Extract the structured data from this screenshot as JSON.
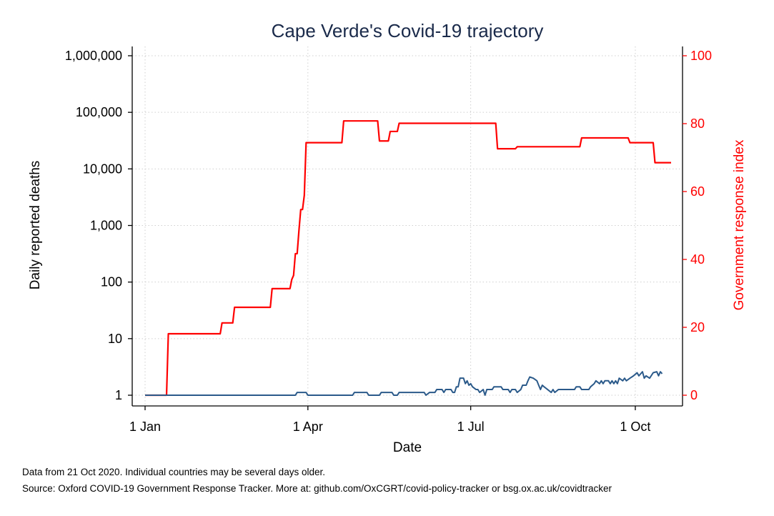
{
  "chart_data": {
    "type": "line",
    "title": "Cape Verde's Covid-19 trajectory",
    "xlabel": "Date",
    "ylabel_left": "Daily reported deaths",
    "ylabel_right": "Government response index",
    "x_ticks": [
      "1 Jan",
      "1 Apr",
      "1 Jul",
      "1 Oct"
    ],
    "x_tick_dates": [
      "2020-01-01",
      "2020-04-01",
      "2020-07-01",
      "2020-10-01"
    ],
    "xlim": [
      "2020-01-01",
      "2020-10-21"
    ],
    "left_axis": {
      "scale": "log",
      "ylim": [
        1,
        1000000
      ],
      "ticks": [
        1,
        10,
        100,
        1000,
        10000,
        100000,
        1000000
      ],
      "tick_labels": [
        "1",
        "10",
        "100",
        "1,000",
        "10,000",
        "100,000",
        "1,000,000"
      ]
    },
    "right_axis": {
      "scale": "linear",
      "ylim": [
        0,
        100
      ],
      "ticks": [
        0,
        20,
        40,
        60,
        80,
        100
      ],
      "tick_labels": [
        "0",
        "20",
        "40",
        "60",
        "80",
        "100"
      ],
      "color": "#ff0000"
    },
    "grid": true,
    "series": [
      {
        "axis": "right",
        "color": "#ff0000",
        "points": [
          [
            "2020-01-01",
            0
          ],
          [
            "2020-01-13",
            0
          ],
          [
            "2020-01-14",
            18.1
          ],
          [
            "2020-02-12",
            18.1
          ],
          [
            "2020-02-13",
            21.3
          ],
          [
            "2020-02-19",
            21.3
          ],
          [
            "2020-02-20",
            25.9
          ],
          [
            "2020-03-11",
            25.9
          ],
          [
            "2020-03-12",
            31.4
          ],
          [
            "2020-03-19",
            31.4
          ],
          [
            "2020-03-20",
            31.4
          ],
          [
            "2020-03-22",
            31.4
          ],
          [
            "2020-03-23",
            34.1
          ],
          [
            "2020-03-24",
            35.3
          ],
          [
            "2020-03-25",
            41.7
          ],
          [
            "2020-03-26",
            41.7
          ],
          [
            "2020-03-27",
            48.5
          ],
          [
            "2020-03-28",
            54.7
          ],
          [
            "2020-03-29",
            54.7
          ],
          [
            "2020-03-30",
            58.9
          ],
          [
            "2020-03-31",
            74.4
          ],
          [
            "2020-04-20",
            74.4
          ],
          [
            "2020-04-21",
            80.8
          ],
          [
            "2020-05-10",
            80.8
          ],
          [
            "2020-05-11",
            74.9
          ],
          [
            "2020-05-16",
            74.9
          ],
          [
            "2020-05-17",
            77.7
          ],
          [
            "2020-05-21",
            77.7
          ],
          [
            "2020-05-22",
            80.1
          ],
          [
            "2020-07-15",
            80.1
          ],
          [
            "2020-07-16",
            72.6
          ],
          [
            "2020-07-26",
            72.6
          ],
          [
            "2020-07-27",
            73.2
          ],
          [
            "2020-08-31",
            73.2
          ],
          [
            "2020-09-01",
            75.8
          ],
          [
            "2020-09-27",
            75.8
          ],
          [
            "2020-09-28",
            74.4
          ],
          [
            "2020-10-11",
            74.4
          ],
          [
            "2020-10-12",
            68.5
          ],
          [
            "2020-10-21",
            68.5
          ]
        ]
      },
      {
        "axis": "left",
        "color": "#2b5a8a",
        "points": [
          [
            "2020-01-01",
            1
          ],
          [
            "2020-03-25",
            1
          ],
          [
            "2020-03-26",
            1.12
          ],
          [
            "2020-03-31",
            1.12
          ],
          [
            "2020-04-01",
            1
          ],
          [
            "2020-04-26",
            1
          ],
          [
            "2020-04-27",
            1.12
          ],
          [
            "2020-05-04",
            1.12
          ],
          [
            "2020-05-05",
            1
          ],
          [
            "2020-05-11",
            1
          ],
          [
            "2020-05-12",
            1.12
          ],
          [
            "2020-05-18",
            1.12
          ],
          [
            "2020-05-19",
            1
          ],
          [
            "2020-05-21",
            1
          ],
          [
            "2020-05-22",
            1.12
          ],
          [
            "2020-06-05",
            1.12
          ],
          [
            "2020-06-06",
            1
          ],
          [
            "2020-06-08",
            1.12
          ],
          [
            "2020-06-11",
            1.12
          ],
          [
            "2020-06-12",
            1.26
          ],
          [
            "2020-06-15",
            1.26
          ],
          [
            "2020-06-16",
            1.12
          ],
          [
            "2020-06-17",
            1.26
          ],
          [
            "2020-06-20",
            1.26
          ],
          [
            "2020-06-21",
            1.12
          ],
          [
            "2020-06-22",
            1.12
          ],
          [
            "2020-06-23",
            1.41
          ],
          [
            "2020-06-24",
            1.41
          ],
          [
            "2020-06-25",
            2.0
          ],
          [
            "2020-06-27",
            2.0
          ],
          [
            "2020-06-28",
            1.6
          ],
          [
            "2020-06-29",
            1.8
          ],
          [
            "2020-06-30",
            1.5
          ],
          [
            "2020-07-01",
            1.6
          ],
          [
            "2020-07-02",
            1.41
          ],
          [
            "2020-07-04",
            1.26
          ],
          [
            "2020-07-05",
            1.26
          ],
          [
            "2020-07-06",
            1.12
          ],
          [
            "2020-07-08",
            1.26
          ],
          [
            "2020-07-09",
            1.0
          ],
          [
            "2020-07-10",
            1.26
          ],
          [
            "2020-07-13",
            1.26
          ],
          [
            "2020-07-14",
            1.41
          ],
          [
            "2020-07-18",
            1.41
          ],
          [
            "2020-07-19",
            1.26
          ],
          [
            "2020-07-22",
            1.26
          ],
          [
            "2020-07-23",
            1.12
          ],
          [
            "2020-07-24",
            1.26
          ],
          [
            "2020-07-26",
            1.26
          ],
          [
            "2020-07-27",
            1.12
          ],
          [
            "2020-07-29",
            1.26
          ],
          [
            "2020-07-30",
            1.5
          ],
          [
            "2020-08-01",
            1.5
          ],
          [
            "2020-08-02",
            1.8
          ],
          [
            "2020-08-03",
            2.1
          ],
          [
            "2020-08-05",
            2.0
          ],
          [
            "2020-08-07",
            1.8
          ],
          [
            "2020-08-08",
            1.5
          ],
          [
            "2020-08-09",
            1.26
          ],
          [
            "2020-08-10",
            1.5
          ],
          [
            "2020-08-11",
            1.41
          ],
          [
            "2020-08-13",
            1.26
          ],
          [
            "2020-08-15",
            1.12
          ],
          [
            "2020-08-16",
            1.26
          ],
          [
            "2020-08-17",
            1.12
          ],
          [
            "2020-08-19",
            1.26
          ],
          [
            "2020-08-28",
            1.26
          ],
          [
            "2020-08-29",
            1.41
          ],
          [
            "2020-08-31",
            1.41
          ],
          [
            "2020-09-01",
            1.26
          ],
          [
            "2020-09-04",
            1.26
          ],
          [
            "2020-09-05",
            1.26
          ],
          [
            "2020-09-06",
            1.41
          ],
          [
            "2020-09-08",
            1.6
          ],
          [
            "2020-09-09",
            1.8
          ],
          [
            "2020-09-11",
            1.6
          ],
          [
            "2020-09-12",
            1.8
          ],
          [
            "2020-09-13",
            1.6
          ],
          [
            "2020-09-14",
            1.8
          ],
          [
            "2020-09-16",
            1.8
          ],
          [
            "2020-09-17",
            1.6
          ],
          [
            "2020-09-18",
            1.8
          ],
          [
            "2020-09-19",
            1.6
          ],
          [
            "2020-09-20",
            1.8
          ],
          [
            "2020-09-21",
            1.6
          ],
          [
            "2020-09-22",
            2.0
          ],
          [
            "2020-09-24",
            1.8
          ],
          [
            "2020-09-25",
            2.0
          ],
          [
            "2020-09-26",
            1.8
          ],
          [
            "2020-09-28",
            2.0
          ],
          [
            "2020-09-30",
            2.2
          ],
          [
            "2020-10-02",
            2.5
          ],
          [
            "2020-10-03",
            2.2
          ],
          [
            "2020-10-05",
            2.6
          ],
          [
            "2020-10-06",
            2.0
          ],
          [
            "2020-10-07",
            2.2
          ],
          [
            "2020-10-09",
            2.0
          ],
          [
            "2020-10-11",
            2.5
          ],
          [
            "2020-10-13",
            2.6
          ],
          [
            "2020-10-14",
            2.2
          ],
          [
            "2020-10-15",
            2.6
          ],
          [
            "2020-10-16",
            2.4
          ]
        ]
      }
    ]
  },
  "notes": {
    "line1": "Data from 21 Oct 2020. Individual countries may be several days older.",
    "line2": "Source: Oxford COVID-19 Government Response Tracker. More at: github.com/OxCGRT/covid-policy-tracker or bsg.ox.ac.uk/covidtracker"
  }
}
